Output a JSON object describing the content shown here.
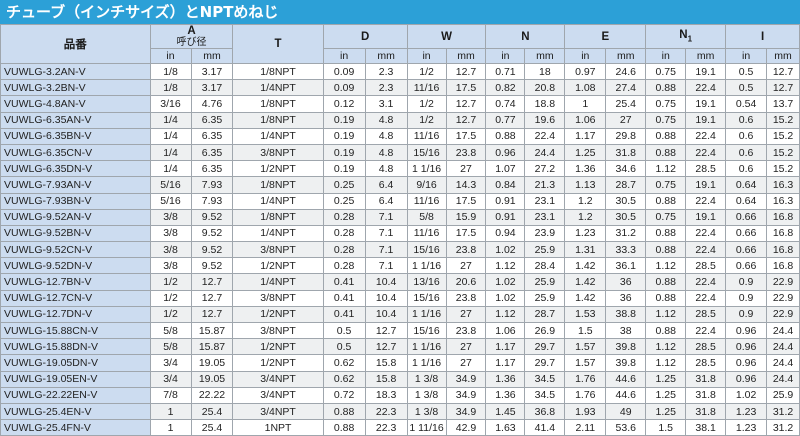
{
  "title": "チューブ（インチサイズ）とNPTめねじ",
  "headers": {
    "part_number": "品番",
    "a_label": "A",
    "a_sub": "呼び径",
    "t": "T",
    "d": "D",
    "w": "W",
    "n": "N",
    "e": "E",
    "n1": "N",
    "n1_sub": "1",
    "i": "I",
    "unit_in": "in",
    "unit_mm": "mm"
  },
  "rows": [
    [
      "VUWLG-3.2AN-V",
      "1/8",
      "3.17",
      "1/8NPT",
      "0.09",
      "2.3",
      "1/2",
      "12.7",
      "0.71",
      "18",
      "0.97",
      "24.6",
      "0.75",
      "19.1",
      "0.5",
      "12.7"
    ],
    [
      "VUWLG-3.2BN-V",
      "1/8",
      "3.17",
      "1/4NPT",
      "0.09",
      "2.3",
      "11/16",
      "17.5",
      "0.82",
      "20.8",
      "1.08",
      "27.4",
      "0.88",
      "22.4",
      "0.5",
      "12.7"
    ],
    [
      "VUWLG-4.8AN-V",
      "3/16",
      "4.76",
      "1/8NPT",
      "0.12",
      "3.1",
      "1/2",
      "12.7",
      "0.74",
      "18.8",
      "1",
      "25.4",
      "0.75",
      "19.1",
      "0.54",
      "13.7"
    ],
    [
      "VUWLG-6.35AN-V",
      "1/4",
      "6.35",
      "1/8NPT",
      "0.19",
      "4.8",
      "1/2",
      "12.7",
      "0.77",
      "19.6",
      "1.06",
      "27",
      "0.75",
      "19.1",
      "0.6",
      "15.2"
    ],
    [
      "VUWLG-6.35BN-V",
      "1/4",
      "6.35",
      "1/4NPT",
      "0.19",
      "4.8",
      "11/16",
      "17.5",
      "0.88",
      "22.4",
      "1.17",
      "29.8",
      "0.88",
      "22.4",
      "0.6",
      "15.2"
    ],
    [
      "VUWLG-6.35CN-V",
      "1/4",
      "6.35",
      "3/8NPT",
      "0.19",
      "4.8",
      "15/16",
      "23.8",
      "0.96",
      "24.4",
      "1.25",
      "31.8",
      "0.88",
      "22.4",
      "0.6",
      "15.2"
    ],
    [
      "VUWLG-6.35DN-V",
      "1/4",
      "6.35",
      "1/2NPT",
      "0.19",
      "4.8",
      "1 1/16",
      "27",
      "1.07",
      "27.2",
      "1.36",
      "34.6",
      "1.12",
      "28.5",
      "0.6",
      "15.2"
    ],
    [
      "VUWLG-7.93AN-V",
      "5/16",
      "7.93",
      "1/8NPT",
      "0.25",
      "6.4",
      "9/16",
      "14.3",
      "0.84",
      "21.3",
      "1.13",
      "28.7",
      "0.75",
      "19.1",
      "0.64",
      "16.3"
    ],
    [
      "VUWLG-7.93BN-V",
      "5/16",
      "7.93",
      "1/4NPT",
      "0.25",
      "6.4",
      "11/16",
      "17.5",
      "0.91",
      "23.1",
      "1.2",
      "30.5",
      "0.88",
      "22.4",
      "0.64",
      "16.3"
    ],
    [
      "VUWLG-9.52AN-V",
      "3/8",
      "9.52",
      "1/8NPT",
      "0.28",
      "7.1",
      "5/8",
      "15.9",
      "0.91",
      "23.1",
      "1.2",
      "30.5",
      "0.75",
      "19.1",
      "0.66",
      "16.8"
    ],
    [
      "VUWLG-9.52BN-V",
      "3/8",
      "9.52",
      "1/4NPT",
      "0.28",
      "7.1",
      "11/16",
      "17.5",
      "0.94",
      "23.9",
      "1.23",
      "31.2",
      "0.88",
      "22.4",
      "0.66",
      "16.8"
    ],
    [
      "VUWLG-9.52CN-V",
      "3/8",
      "9.52",
      "3/8NPT",
      "0.28",
      "7.1",
      "15/16",
      "23.8",
      "1.02",
      "25.9",
      "1.31",
      "33.3",
      "0.88",
      "22.4",
      "0.66",
      "16.8"
    ],
    [
      "VUWLG-9.52DN-V",
      "3/8",
      "9.52",
      "1/2NPT",
      "0.28",
      "7.1",
      "1 1/16",
      "27",
      "1.12",
      "28.4",
      "1.42",
      "36.1",
      "1.12",
      "28.5",
      "0.66",
      "16.8"
    ],
    [
      "VUWLG-12.7BN-V",
      "1/2",
      "12.7",
      "1/4NPT",
      "0.41",
      "10.4",
      "13/16",
      "20.6",
      "1.02",
      "25.9",
      "1.42",
      "36",
      "0.88",
      "22.4",
      "0.9",
      "22.9"
    ],
    [
      "VUWLG-12.7CN-V",
      "1/2",
      "12.7",
      "3/8NPT",
      "0.41",
      "10.4",
      "15/16",
      "23.8",
      "1.02",
      "25.9",
      "1.42",
      "36",
      "0.88",
      "22.4",
      "0.9",
      "22.9"
    ],
    [
      "VUWLG-12.7DN-V",
      "1/2",
      "12.7",
      "1/2NPT",
      "0.41",
      "10.4",
      "1 1/16",
      "27",
      "1.12",
      "28.7",
      "1.53",
      "38.8",
      "1.12",
      "28.5",
      "0.9",
      "22.9"
    ],
    [
      "VUWLG-15.88CN-V",
      "5/8",
      "15.87",
      "3/8NPT",
      "0.5",
      "12.7",
      "15/16",
      "23.8",
      "1.06",
      "26.9",
      "1.5",
      "38",
      "0.88",
      "22.4",
      "0.96",
      "24.4"
    ],
    [
      "VUWLG-15.88DN-V",
      "5/8",
      "15.87",
      "1/2NPT",
      "0.5",
      "12.7",
      "1 1/16",
      "27",
      "1.17",
      "29.7",
      "1.57",
      "39.8",
      "1.12",
      "28.5",
      "0.96",
      "24.4"
    ],
    [
      "VUWLG-19.05DN-V",
      "3/4",
      "19.05",
      "1/2NPT",
      "0.62",
      "15.8",
      "1 1/16",
      "27",
      "1.17",
      "29.7",
      "1.57",
      "39.8",
      "1.12",
      "28.5",
      "0.96",
      "24.4"
    ],
    [
      "VUWLG-19.05EN-V",
      "3/4",
      "19.05",
      "3/4NPT",
      "0.62",
      "15.8",
      "1 3/8",
      "34.9",
      "1.36",
      "34.5",
      "1.76",
      "44.6",
      "1.25",
      "31.8",
      "0.96",
      "24.4"
    ],
    [
      "VUWLG-22.22EN-V",
      "7/8",
      "22.22",
      "3/4NPT",
      "0.72",
      "18.3",
      "1 3/8",
      "34.9",
      "1.36",
      "34.5",
      "1.76",
      "44.6",
      "1.25",
      "31.8",
      "1.02",
      "25.9"
    ],
    [
      "VUWLG-25.4EN-V",
      "1",
      "25.4",
      "3/4NPT",
      "0.88",
      "22.3",
      "1 3/8",
      "34.9",
      "1.45",
      "36.8",
      "1.93",
      "49",
      "1.25",
      "31.8",
      "1.23",
      "31.2"
    ],
    [
      "VUWLG-25.4FN-V",
      "1",
      "25.4",
      "1NPT",
      "0.88",
      "22.3",
      "1 11/16",
      "42.9",
      "1.63",
      "41.4",
      "2.11",
      "53.6",
      "1.5",
      "38.1",
      "1.23",
      "31.2"
    ]
  ]
}
